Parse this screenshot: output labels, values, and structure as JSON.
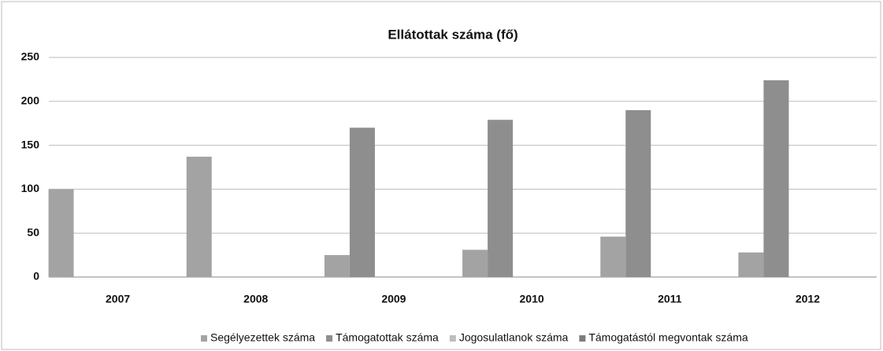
{
  "chart_data": {
    "type": "bar",
    "title": "Ellátottak száma (fő)",
    "categories": [
      "2007",
      "2008",
      "2009",
      "2010",
      "2011",
      "2012"
    ],
    "series": [
      {
        "name": "Segélyezettek száma",
        "color": "#a3a3a3",
        "values": [
          100,
          137,
          25,
          31,
          46,
          28
        ]
      },
      {
        "name": "Támogatottak száma",
        "color": "#8e8e8e",
        "values": [
          0,
          0,
          170,
          179,
          190,
          224
        ]
      },
      {
        "name": "Jogosulatlanok száma",
        "color": "#bdbdbd",
        "values": [
          0,
          0,
          0,
          0,
          0,
          0
        ]
      },
      {
        "name": "Támogatástól megvontak száma",
        "color": "#7d7d7d",
        "values": [
          0,
          0,
          0,
          0,
          0,
          0
        ]
      }
    ],
    "ylim": [
      0,
      250
    ],
    "yticks": [
      0,
      50,
      100,
      150,
      200,
      250
    ],
    "grid": true,
    "legend": "bottom"
  }
}
